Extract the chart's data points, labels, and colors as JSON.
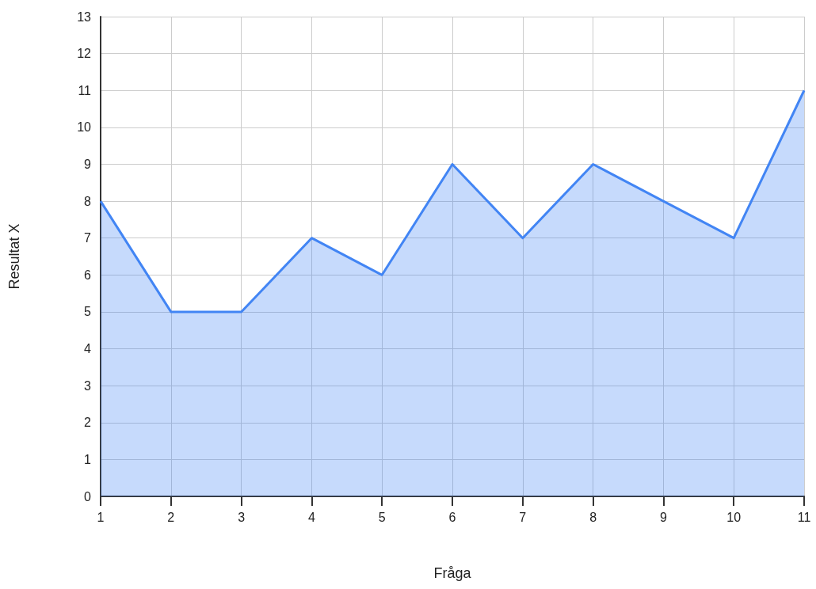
{
  "chart_data": {
    "type": "area",
    "xlabel": "Fråga",
    "ylabel": "Resultat X",
    "x": [
      1,
      2,
      3,
      4,
      5,
      6,
      7,
      8,
      9,
      10,
      11
    ],
    "values": [
      8,
      5,
      5,
      7,
      6,
      9,
      7,
      9,
      8,
      7,
      11
    ],
    "color": "#4285f4",
    "xlim": [
      1,
      11
    ],
    "xticks": [
      1,
      2,
      3,
      4,
      5,
      6,
      7,
      8,
      9,
      10,
      11
    ],
    "ylim": [
      0,
      13
    ],
    "yticks": [
      0,
      1,
      2,
      3,
      4,
      5,
      6,
      7,
      8,
      9,
      10,
      11,
      12,
      13
    ],
    "grid": true,
    "marker": "none",
    "line_style": "solid"
  }
}
